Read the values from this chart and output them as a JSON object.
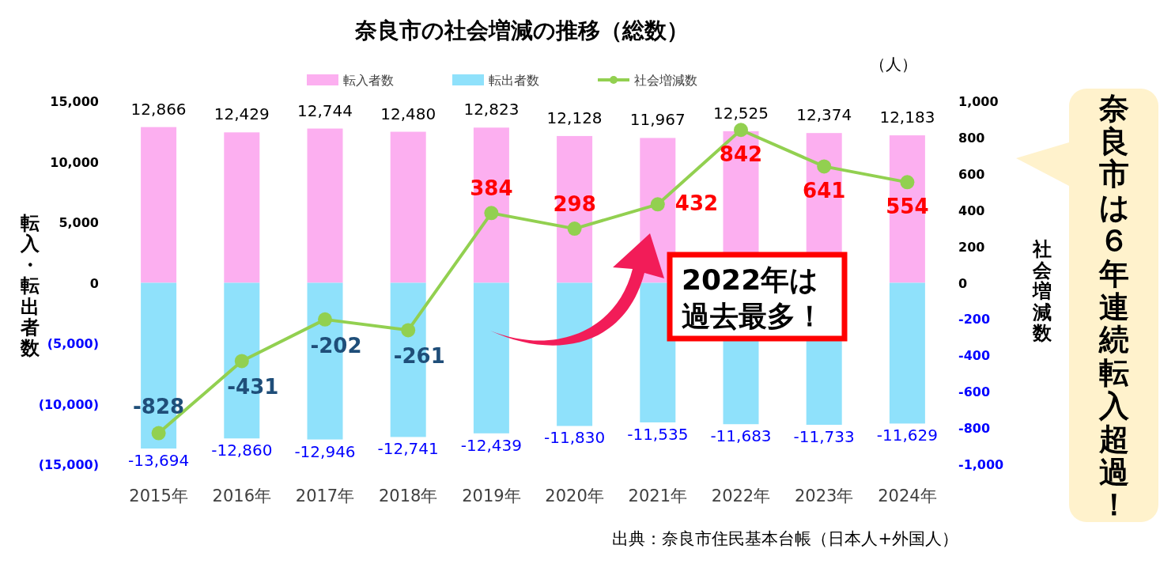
{
  "chart_data": {
    "type": "bar",
    "stacked": true,
    "title": "奈良市の社会増減の推移（総数）",
    "ylabel": "転入・転出者数",
    "y2label": "社会増減数",
    "categories": [
      "2015年",
      "2016年",
      "2017年",
      "2018年",
      "2019年",
      "2020年",
      "2021年",
      "2022年",
      "2023年",
      "2024年"
    ],
    "series": [
      {
        "name": "転入者数",
        "color": "#fcaff0",
        "values": [
          12866,
          12429,
          12744,
          12480,
          12823,
          12128,
          11967,
          12525,
          12374,
          12183
        ],
        "value_labels": [
          "12,866",
          "12,429",
          "12,744",
          "12,480",
          "12,823",
          "12,128",
          "11,967",
          "12,525",
          "12,374",
          "12,183"
        ]
      },
      {
        "name": "転出者数",
        "color": "#8fe1fb",
        "values": [
          -13694,
          -12860,
          -12946,
          -12741,
          -12439,
          -11830,
          -11535,
          -11683,
          -11733,
          -11629
        ],
        "value_labels": [
          "-13,694",
          "-12,860",
          "-12,946",
          "-12,741",
          "-12,439",
          "-11,830",
          "-11,535",
          "-11,683",
          "-11,733",
          "-11,629"
        ]
      },
      {
        "name": "社会増減数",
        "type": "line",
        "axis": "y2",
        "color": "#92d050",
        "marker": "circle",
        "values": [
          -828,
          -431,
          -202,
          -261,
          384,
          298,
          432,
          842,
          641,
          554
        ],
        "value_labels": [
          "-828",
          "-431",
          "-202",
          "-261",
          "384",
          "298",
          "432",
          "842",
          "641",
          "554"
        ]
      }
    ],
    "ylim": [
      -15000,
      15000
    ],
    "yticks": [
      {
        "value": -15000,
        "label": "(15,000)"
      },
      {
        "value": -10000,
        "label": "(10,000)"
      },
      {
        "value": -5000,
        "label": "(5,000)"
      },
      0,
      {
        "value": 5000,
        "label": "5,000"
      },
      {
        "value": 10000,
        "label": "10,000"
      },
      {
        "value": 15000,
        "label": "15,000"
      }
    ],
    "y2lim": [
      -1000,
      1000
    ],
    "y2ticks": [
      {
        "value": -1000,
        "label": "-1,000"
      },
      -800,
      -600,
      -400,
      -200,
      0,
      200,
      400,
      600,
      800,
      {
        "value": 1000,
        "label": "1,000"
      }
    ],
    "legend": "top",
    "grid": false,
    "annotations": [
      "（人）",
      "2022年は過去最多！",
      "奈良市は６年連続転入超過！",
      "出典：奈良市住民基本台帳（日本人+外国人）"
    ]
  }
}
